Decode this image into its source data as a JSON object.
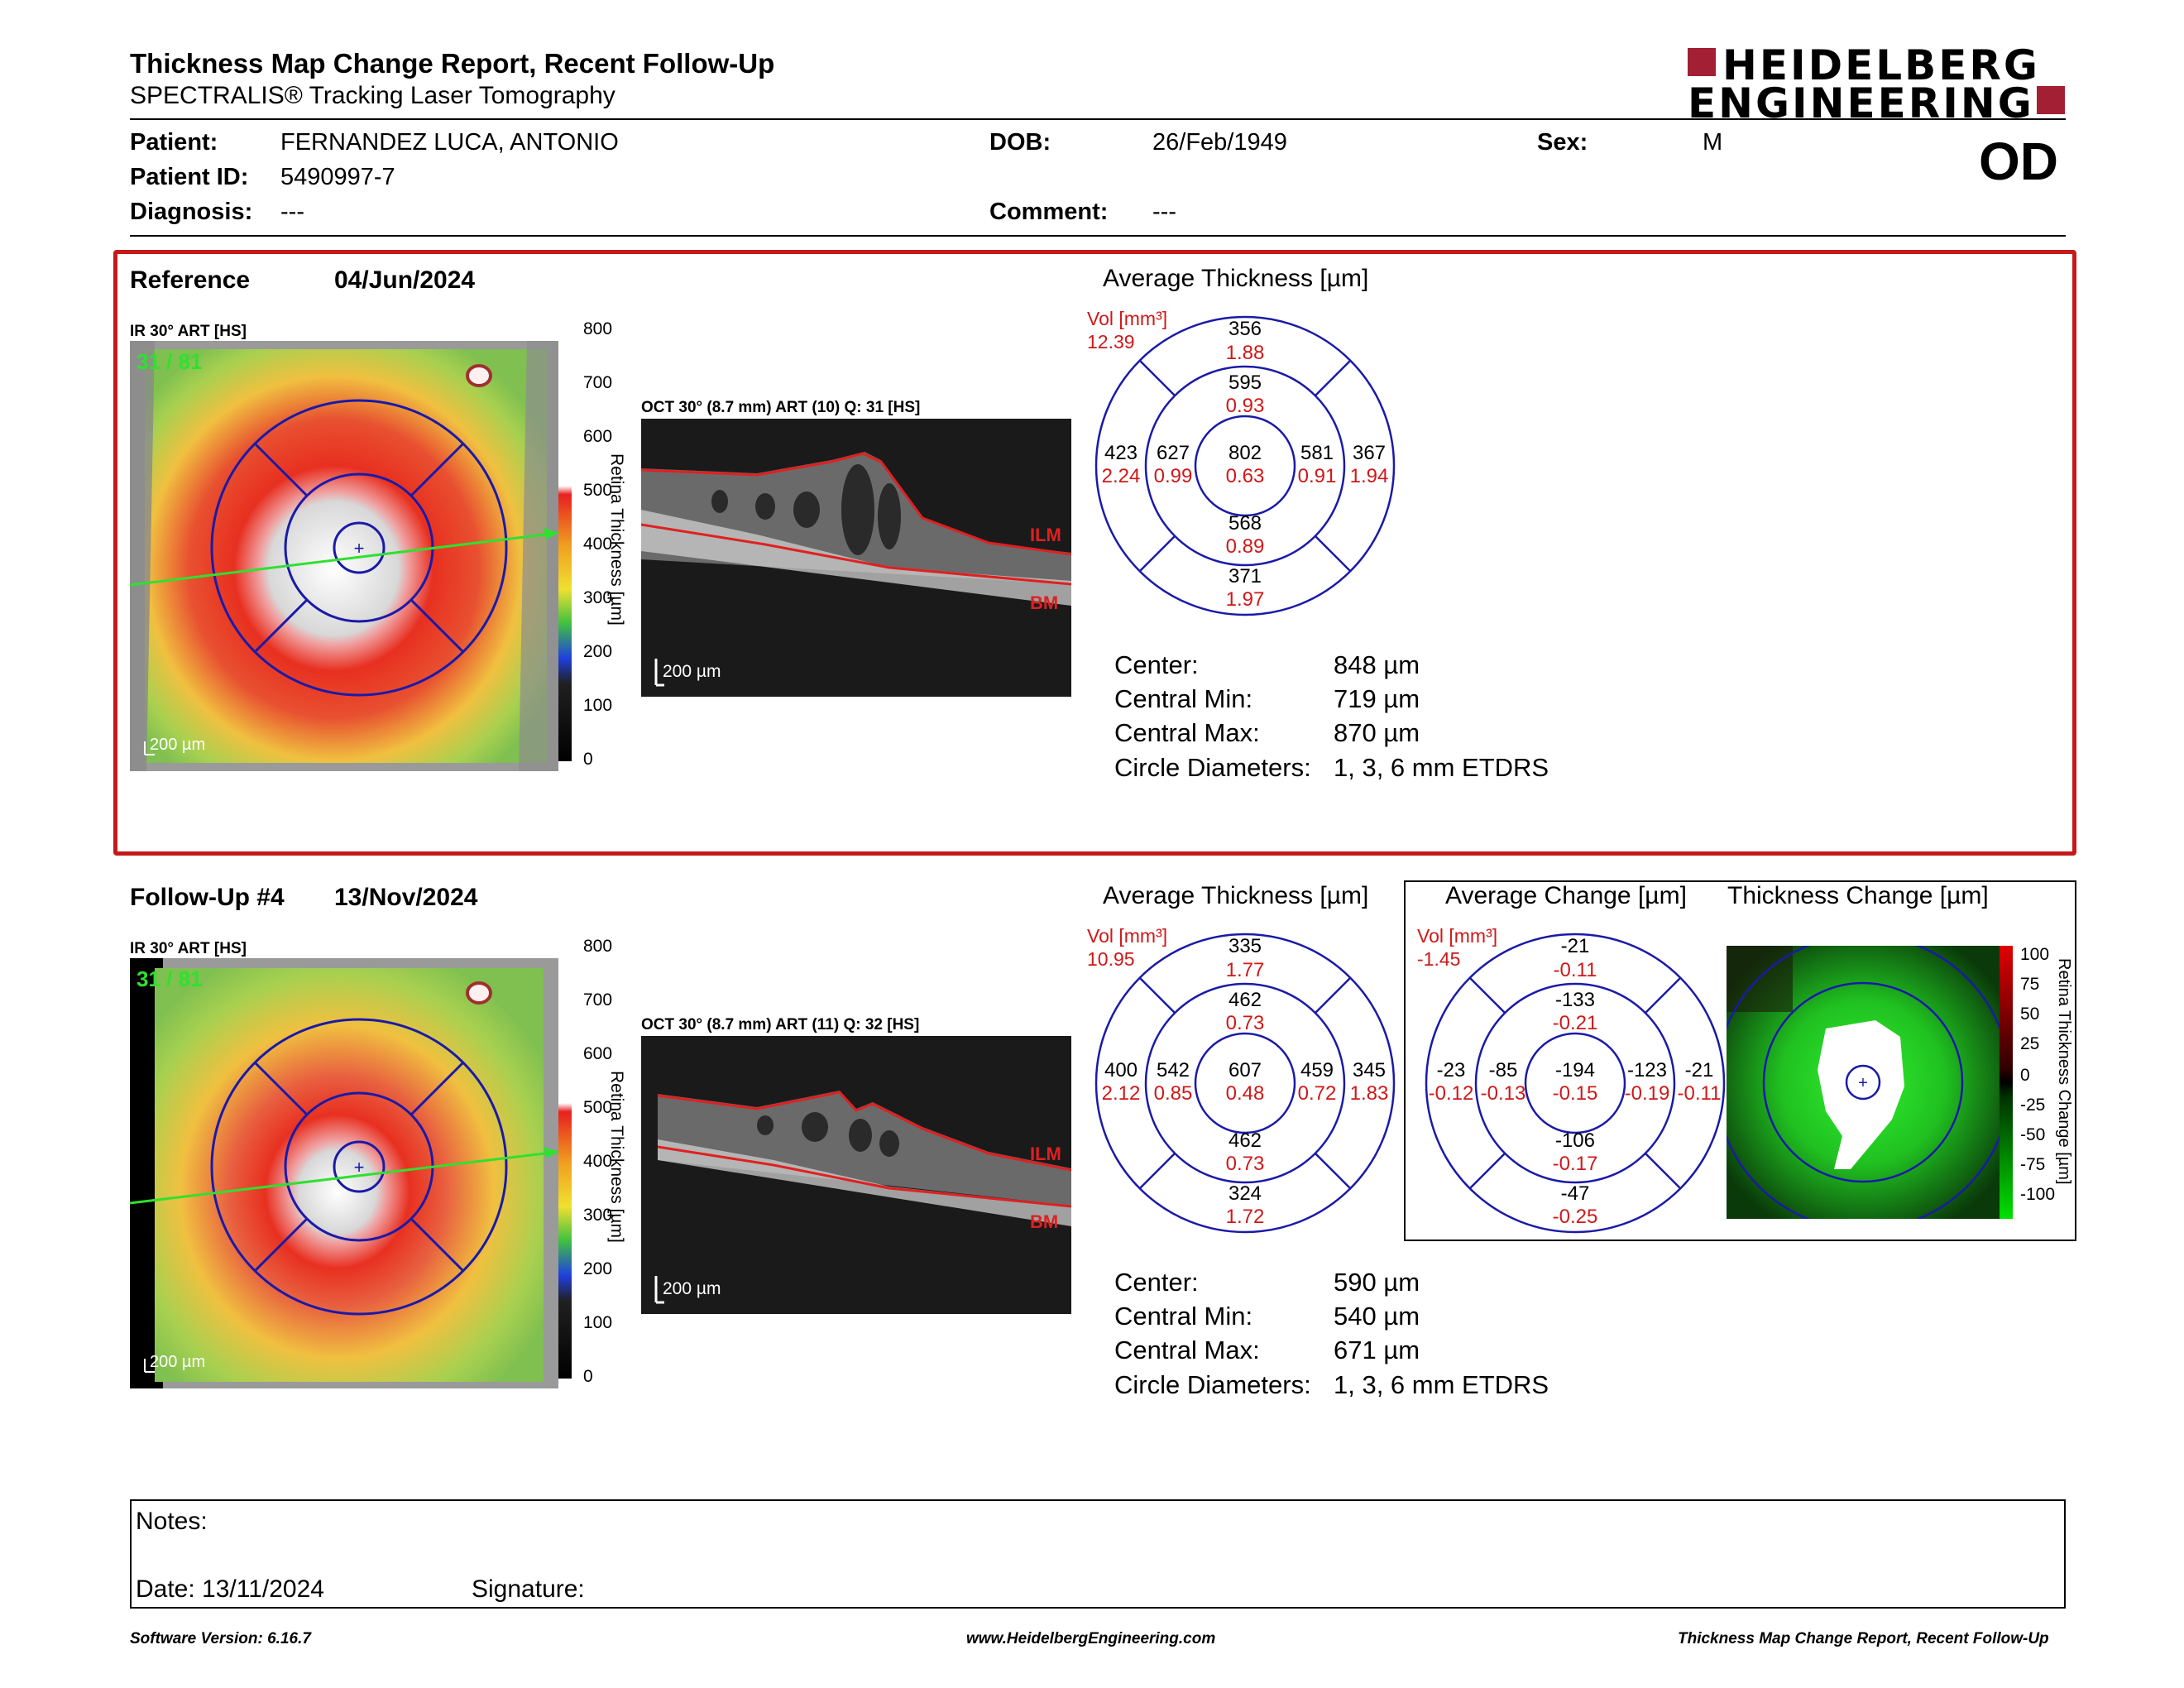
{
  "header": {
    "title": "Thickness Map Change Report, Recent Follow-Up",
    "subtitle": "SPECTRALIS® Tracking Laser Tomography",
    "logo_line1": "HEIDELBERG",
    "logo_line2": "ENGINEERING",
    "eye": "OD"
  },
  "patient": {
    "patient_label": "Patient:",
    "patient_value": "FERNANDEZ LUCA, ANTONIO",
    "id_label": "Patient ID:",
    "id_value": "5490997-7",
    "diagnosis_label": "Diagnosis:",
    "diagnosis_value": "---",
    "dob_label": "DOB:",
    "dob_value": "26/Feb/1949",
    "comment_label": "Comment:",
    "comment_value": "---",
    "sex_label": "Sex:",
    "sex_value": "M"
  },
  "reference": {
    "label": "Reference",
    "date": "04/Jun/2024",
    "ir_label": "IR 30° ART [HS]",
    "quality": "31 / 81",
    "scale_label": "200 µm",
    "oct_label": "OCT 30° (8.7 mm) ART (10) Q: 31 [HS]",
    "oct_scale": "200 µm",
    "ilm": "ILM",
    "bm": "BM",
    "avg_title": "Average Thickness [µm]",
    "vol_label": "Vol [mm³]",
    "vol_value": "12.39",
    "grid": {
      "top_outer": [
        "356",
        "1.88"
      ],
      "top_inner": [
        "595",
        "0.93"
      ],
      "left_outer": [
        "423",
        "2.24"
      ],
      "left_inner": [
        "627",
        "0.99"
      ],
      "center": [
        "802",
        "0.63"
      ],
      "right_inner": [
        "581",
        "0.91"
      ],
      "right_outer": [
        "367",
        "1.94"
      ],
      "bottom_inner": [
        "568",
        "0.89"
      ],
      "bottom_outer": [
        "371",
        "1.97"
      ]
    },
    "stats": [
      {
        "label": "Center:",
        "value": "848 µm"
      },
      {
        "label": "Central Min:",
        "value": "719 µm"
      },
      {
        "label": "Central Max:",
        "value": "870 µm"
      },
      {
        "label": "Circle Diameters:",
        "value": "1, 3, 6 mm ETDRS"
      }
    ]
  },
  "followup": {
    "label": "Follow-Up #4",
    "date": "13/Nov/2024",
    "ir_label": "IR 30° ART [HS]",
    "quality": "31 / 81",
    "scale_label": "200 µm",
    "oct_label": "OCT 30° (8.7 mm) ART (11) Q: 32 [HS]",
    "oct_scale": "200 µm",
    "ilm": "ILM",
    "bm": "BM",
    "avg_title": "Average Thickness [µm]",
    "vol_label": "Vol [mm³]",
    "vol_value": "10.95",
    "grid": {
      "top_outer": [
        "335",
        "1.77"
      ],
      "top_inner": [
        "462",
        "0.73"
      ],
      "left_outer": [
        "400",
        "2.12"
      ],
      "left_inner": [
        "542",
        "0.85"
      ],
      "center": [
        "607",
        "0.48"
      ],
      "right_inner": [
        "459",
        "0.72"
      ],
      "right_outer": [
        "345",
        "1.83"
      ],
      "bottom_inner": [
        "462",
        "0.73"
      ],
      "bottom_outer": [
        "324",
        "1.72"
      ]
    },
    "stats": [
      {
        "label": "Center:",
        "value": "590 µm"
      },
      {
        "label": "Central Min:",
        "value": "540 µm"
      },
      {
        "label": "Central Max:",
        "value": "671 µm"
      },
      {
        "label": "Circle Diameters:",
        "value": "1, 3, 6 mm ETDRS"
      }
    ]
  },
  "change": {
    "avg_title": "Average Change [µm]",
    "map_title": "Thickness Change [µm]",
    "vol_label": "Vol [mm³]",
    "vol_value": "-1.45",
    "grid": {
      "top_outer": [
        "-21",
        "-0.11"
      ],
      "top_inner": [
        "-133",
        "-0.21"
      ],
      "left_outer": [
        "-23",
        "-0.12"
      ],
      "left_inner": [
        "-85",
        "-0.13"
      ],
      "center": [
        "-194",
        "-0.15"
      ],
      "right_inner": [
        "-123",
        "-0.19"
      ],
      "right_outer": [
        "-21",
        "-0.11"
      ],
      "bottom_inner": [
        "-106",
        "-0.17"
      ],
      "bottom_outer": [
        "-47",
        "-0.25"
      ]
    },
    "scale_ticks": [
      "100",
      "75",
      "50",
      "25",
      "0",
      "-25",
      "-50",
      "-75",
      "-100"
    ],
    "scale_axis": "Retina Thickness Change [µm]"
  },
  "thickness_scale": {
    "ticks": [
      "800",
      "700",
      "600",
      "500",
      "400",
      "300",
      "200",
      "100",
      "0"
    ],
    "axis": "Retina Thickness [µm]"
  },
  "notes": {
    "notes_label": "Notes:",
    "date_label": "Date: 13/11/2024",
    "signature_label": "Signature:"
  },
  "footer": {
    "left": "Software Version: 6.16.7",
    "center": "www.HeidelbergEngineering.com",
    "right": "Thickness Map Change Report, Recent Follow-Up"
  },
  "colors": {
    "accent_red": "#c41a1a",
    "logo_red": "#a31f34",
    "etdrs_blue": "#1a1aa8",
    "value_red": "#d01818"
  }
}
